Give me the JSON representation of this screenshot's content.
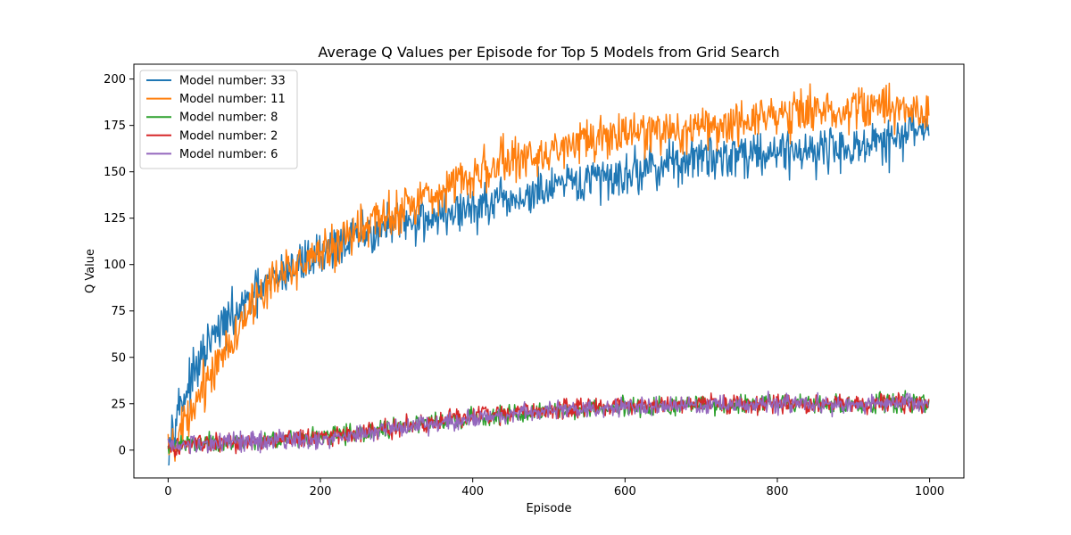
{
  "chart_data": {
    "type": "line",
    "title": "Average Q Values per Episode for Top 5 Models from Grid Search",
    "xlabel": "Episode",
    "ylabel": "Q Value",
    "xlim": [
      -45,
      1045
    ],
    "ylim": [
      -15,
      208
    ],
    "xticks": [
      0,
      200,
      400,
      600,
      800,
      1000
    ],
    "yticks": [
      0,
      25,
      50,
      75,
      100,
      125,
      150,
      175,
      200
    ],
    "grid": false,
    "legend_position": "top-left",
    "episodes": 1000,
    "series": [
      {
        "name": "Model number: 33",
        "color": "#1f77b4",
        "anchors": [
          [
            0,
            3
          ],
          [
            5,
            12
          ],
          [
            10,
            20
          ],
          [
            20,
            28
          ],
          [
            30,
            37
          ],
          [
            40,
            45
          ],
          [
            50,
            54
          ],
          [
            60,
            61
          ],
          [
            75,
            68
          ],
          [
            100,
            77
          ],
          [
            125,
            87
          ],
          [
            150,
            95
          ],
          [
            175,
            101
          ],
          [
            200,
            106
          ],
          [
            225,
            111
          ],
          [
            250,
            115
          ],
          [
            300,
            122
          ],
          [
            350,
            126
          ],
          [
            400,
            130
          ],
          [
            450,
            134
          ],
          [
            500,
            140
          ],
          [
            550,
            145
          ],
          [
            600,
            149
          ],
          [
            650,
            154
          ],
          [
            700,
            157
          ],
          [
            750,
            160
          ],
          [
            800,
            161
          ],
          [
            850,
            162
          ],
          [
            900,
            163
          ],
          [
            950,
            166
          ],
          [
            995,
            175
          ]
        ],
        "noise": 6
      },
      {
        "name": "Model number: 11",
        "color": "#ff7f0e",
        "anchors": [
          [
            0,
            -3
          ],
          [
            10,
            3
          ],
          [
            20,
            10
          ],
          [
            30,
            18
          ],
          [
            40,
            28
          ],
          [
            50,
            37
          ],
          [
            60,
            45
          ],
          [
            75,
            55
          ],
          [
            100,
            72
          ],
          [
            125,
            84
          ],
          [
            150,
            96
          ],
          [
            175,
            101
          ],
          [
            200,
            107
          ],
          [
            250,
            118
          ],
          [
            300,
            129
          ],
          [
            350,
            139
          ],
          [
            400,
            149
          ],
          [
            450,
            156
          ],
          [
            500,
            161
          ],
          [
            550,
            166
          ],
          [
            600,
            169
          ],
          [
            650,
            171
          ],
          [
            700,
            174
          ],
          [
            750,
            177
          ],
          [
            800,
            181
          ],
          [
            850,
            183
          ],
          [
            900,
            184
          ],
          [
            950,
            185
          ],
          [
            995,
            182
          ]
        ],
        "noise": 6
      },
      {
        "name": "Model number: 8",
        "color": "#2ca02c",
        "anchors": [
          [
            0,
            3
          ],
          [
            100,
            4
          ],
          [
            200,
            7
          ],
          [
            300,
            12
          ],
          [
            400,
            17
          ],
          [
            500,
            21
          ],
          [
            600,
            23
          ],
          [
            700,
            24
          ],
          [
            800,
            25
          ],
          [
            900,
            25
          ],
          [
            995,
            26
          ]
        ],
        "noise": 2.5
      },
      {
        "name": "Model number: 2",
        "color": "#d62728",
        "anchors": [
          [
            0,
            2
          ],
          [
            100,
            4
          ],
          [
            200,
            7
          ],
          [
            300,
            12
          ],
          [
            400,
            18
          ],
          [
            500,
            22
          ],
          [
            600,
            24
          ],
          [
            700,
            25
          ],
          [
            800,
            25
          ],
          [
            900,
            25
          ],
          [
            995,
            25
          ]
        ],
        "noise": 2.5
      },
      {
        "name": "Model number: 6",
        "color": "#9467bd",
        "anchors": [
          [
            0,
            3
          ],
          [
            100,
            4
          ],
          [
            200,
            6
          ],
          [
            300,
            12
          ],
          [
            400,
            17
          ],
          [
            500,
            21
          ],
          [
            600,
            23
          ],
          [
            700,
            24
          ],
          [
            800,
            25
          ],
          [
            900,
            25
          ],
          [
            995,
            25
          ]
        ],
        "noise": 2.5
      }
    ]
  }
}
